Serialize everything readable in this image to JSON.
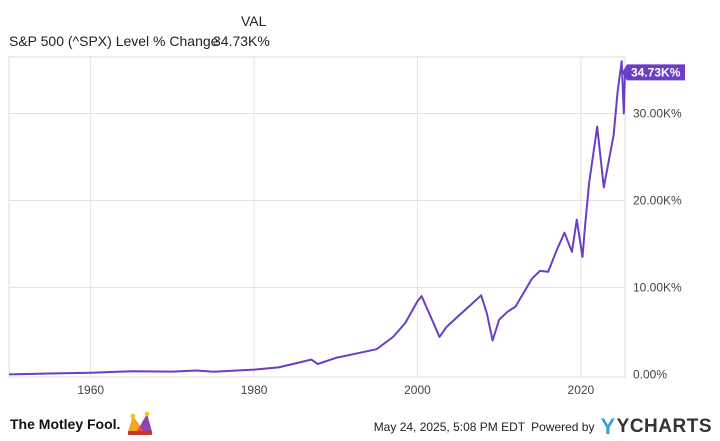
{
  "legend": {
    "column_header": "VAL",
    "series_label": "S&P 500 (^SPX) Level % Change",
    "series_value": "34.73K%"
  },
  "colors": {
    "line": "#6a3fc4",
    "grid": "#e2e2e2",
    "axis_text": "#444444",
    "plot_border": "#dddddd"
  },
  "footer": {
    "brand": "The Motley Fool.",
    "brand_icon": "jester-hat-icon",
    "timestamp": "May 24, 2025, 5:08 PM EDT",
    "powered_by": "Powered by",
    "provider": "YCHARTS",
    "provider_icon": "ycharts-y-icon"
  },
  "chart_data": {
    "type": "line",
    "title": "",
    "xlabel": "",
    "ylabel": "",
    "xlim": [
      1950.0,
      2025.4
    ],
    "ylim": [
      -300,
      36500
    ],
    "x_ticks": [
      1960,
      1980,
      2000,
      2020
    ],
    "x_tick_labels": [
      "1960",
      "1980",
      "2000",
      "2020"
    ],
    "y_ticks": [
      0,
      10000,
      20000,
      30000
    ],
    "y_tick_labels": [
      "0.00%",
      "10.00K%",
      "20.00K%",
      "30.00K%"
    ],
    "grid": true,
    "end_label": "34.73K%",
    "series": [
      {
        "name": "S&P 500 (^SPX) Level % Change",
        "color": "#6a3fc4",
        "points": [
          [
            1950.0,
            0
          ],
          [
            1955.0,
            100
          ],
          [
            1960.0,
            200
          ],
          [
            1965.0,
            350
          ],
          [
            1970.0,
            320
          ],
          [
            1973.0,
            450
          ],
          [
            1975.0,
            300
          ],
          [
            1980.0,
            550
          ],
          [
            1983.0,
            800
          ],
          [
            1987.0,
            1700
          ],
          [
            1987.8,
            1200
          ],
          [
            1990.0,
            1900
          ],
          [
            1993.0,
            2500
          ],
          [
            1995.0,
            2900
          ],
          [
            1997.0,
            4300
          ],
          [
            1998.5,
            5900
          ],
          [
            2000.0,
            8400
          ],
          [
            2000.5,
            9000
          ],
          [
            2001.5,
            6900
          ],
          [
            2002.7,
            4300
          ],
          [
            2003.5,
            5400
          ],
          [
            2005.0,
            6700
          ],
          [
            2007.0,
            8400
          ],
          [
            2007.8,
            9100
          ],
          [
            2008.5,
            7000
          ],
          [
            2009.2,
            3900
          ],
          [
            2010.0,
            6300
          ],
          [
            2011.0,
            7200
          ],
          [
            2012.0,
            7800
          ],
          [
            2013.0,
            9400
          ],
          [
            2014.0,
            11000
          ],
          [
            2015.0,
            11900
          ],
          [
            2016.0,
            11800
          ],
          [
            2017.0,
            14200
          ],
          [
            2018.0,
            16300
          ],
          [
            2018.9,
            14100
          ],
          [
            2019.5,
            17800
          ],
          [
            2020.2,
            13500
          ],
          [
            2020.5,
            17000
          ],
          [
            2021.0,
            22000
          ],
          [
            2022.0,
            28500
          ],
          [
            2022.8,
            21500
          ],
          [
            2023.5,
            25000
          ],
          [
            2024.0,
            27500
          ],
          [
            2024.5,
            32500
          ],
          [
            2025.0,
            36000
          ],
          [
            2025.25,
            30000
          ],
          [
            2025.4,
            34730
          ]
        ]
      }
    ]
  }
}
